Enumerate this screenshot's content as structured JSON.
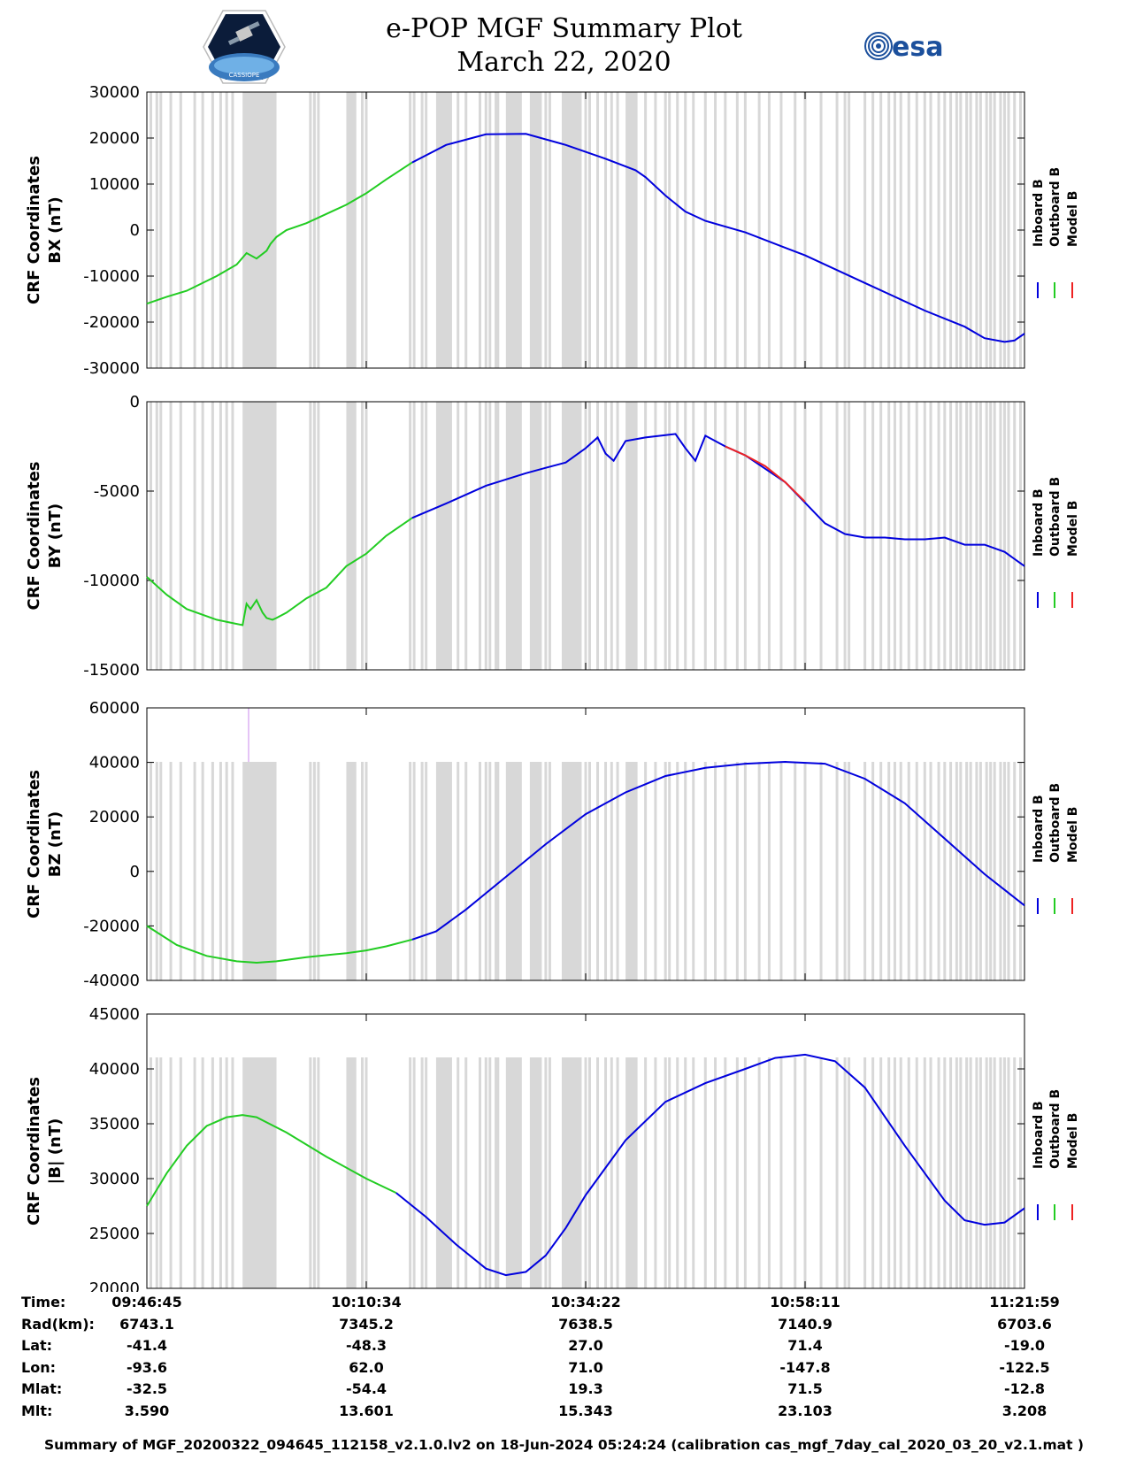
{
  "header": {
    "title_line1": "e-POP MGF Summary Plot",
    "title_line2": "March 22, 2020",
    "logo_left_text": "CASSIOPE",
    "logo_right_text": "esa"
  },
  "colors": {
    "inboard": "#0000dd",
    "outboard": "#22cc22",
    "model": "#ee2222",
    "gap_band": "#d8d8d8",
    "spike": "#cc88ee"
  },
  "legend": {
    "labels": [
      "Inboard B",
      "Outboard B",
      "Model B"
    ]
  },
  "chart_data": [
    {
      "type": "line",
      "ylabel_line1": "CRF Coordinates",
      "ylabel_line2": "BX (nT)",
      "ylim": [
        -30000,
        30000
      ],
      "yticks": [
        -30000,
        -20000,
        -10000,
        0,
        10000,
        20000,
        30000
      ],
      "ytick_labels": [
        "-30000",
        "-20000",
        "-10000",
        "0",
        "10000",
        "20000",
        "30000"
      ],
      "series": [
        {
          "name": "Outboard B",
          "x": [
            0,
            10,
            20,
            35,
            45,
            50,
            55,
            60,
            62,
            65,
            70,
            80,
            90,
            100,
            110,
            120,
            133
          ],
          "y": [
            -16000,
            -14500,
            -13200,
            -10000,
            -7500,
            -5000,
            -6200,
            -4500,
            -3000,
            -1500,
            0,
            1500,
            3500,
            5500,
            8000,
            11000,
            14700
          ]
        },
        {
          "name": "Inboard B",
          "x": [
            133,
            150,
            170,
            190,
            210,
            230,
            245,
            250,
            260,
            270,
            280,
            300,
            330,
            360,
            390,
            410,
            420,
            430,
            435,
            440
          ],
          "y": [
            14700,
            18500,
            20800,
            20900,
            18500,
            15500,
            13000,
            11500,
            7500,
            4000,
            2000,
            -500,
            -5500,
            -11500,
            -17500,
            -21000,
            -23500,
            -24300,
            -24000,
            -22500
          ]
        }
      ]
    },
    {
      "type": "line",
      "ylabel_line1": "CRF Coordinates",
      "ylabel_line2": "BY (nT)",
      "ylim": [
        -15000,
        0
      ],
      "yticks": [
        -15000,
        -10000,
        -5000,
        0
      ],
      "ytick_labels": [
        "-15000",
        "-10000",
        "-5000",
        "0"
      ],
      "series": [
        {
          "name": "Outboard B",
          "x": [
            0,
            10,
            20,
            35,
            48,
            50,
            52,
            55,
            58,
            60,
            63,
            65,
            70,
            80,
            90,
            100,
            110,
            120,
            133
          ],
          "y": [
            -9800,
            -10800,
            -11600,
            -12200,
            -12500,
            -11300,
            -11600,
            -11100,
            -11800,
            -12100,
            -12200,
            -12100,
            -11800,
            -11000,
            -10400,
            -9200,
            -8500,
            -7500,
            -6500
          ]
        },
        {
          "name": "Inboard B",
          "x": [
            133,
            150,
            170,
            190,
            200,
            210,
            220,
            226,
            230,
            234,
            240,
            250,
            265,
            270,
            275,
            280,
            290,
            300,
            320,
            340,
            350,
            360,
            370,
            380,
            390,
            400,
            410,
            420,
            430,
            440
          ],
          "y": [
            -6500,
            -5700,
            -4700,
            -4000,
            -3700,
            -3400,
            -2600,
            -2000,
            -2900,
            -3300,
            -2200,
            -2000,
            -1800,
            -2600,
            -3300,
            -1900,
            -2500,
            -3000,
            -4500,
            -6800,
            -7400,
            -7600,
            -7600,
            -7700,
            -7700,
            -7600,
            -8000,
            -8000,
            -8400,
            -9200
          ]
        },
        {
          "name": "Model B",
          "x": [
            290,
            300,
            310,
            320,
            330
          ],
          "y": [
            -2500,
            -3000,
            -3600,
            -4500,
            -5600
          ]
        }
      ]
    },
    {
      "type": "line",
      "ylabel_line1": "CRF Coordinates",
      "ylabel_line2": "BZ (nT)",
      "ylim": [
        -40000,
        60000
      ],
      "yticks": [
        -40000,
        -20000,
        0,
        20000,
        40000,
        60000
      ],
      "ytick_labels": [
        "-40000",
        "-20000",
        "0",
        "20000",
        "40000",
        "60000"
      ],
      "series": [
        {
          "name": "Outboard B",
          "x": [
            0,
            15,
            30,
            45,
            55,
            65,
            80,
            100,
            110,
            120,
            133
          ],
          "y": [
            -20000,
            -27000,
            -31000,
            -33000,
            -33500,
            -33000,
            -31500,
            -30000,
            -29000,
            -27500,
            -25000
          ]
        },
        {
          "name": "Inboard B",
          "x": [
            133,
            145,
            160,
            180,
            200,
            220,
            240,
            260,
            280,
            300,
            320,
            340,
            360,
            380,
            400,
            420,
            440
          ],
          "y": [
            -25000,
            -22000,
            -14000,
            -2000,
            10000,
            21000,
            29000,
            35000,
            38000,
            39500,
            40200,
            39500,
            34000,
            25000,
            12000,
            -1000,
            -12500
          ]
        }
      ]
    },
    {
      "type": "line",
      "ylabel_line1": "CRF Coordinates",
      "ylabel_line2": "|B| (nT)",
      "ylim": [
        20000,
        45000
      ],
      "yticks": [
        20000,
        25000,
        30000,
        35000,
        40000,
        45000
      ],
      "ytick_labels": [
        "20000",
        "25000",
        "30000",
        "35000",
        "40000",
        "45000"
      ],
      "series": [
        {
          "name": "Outboard B",
          "x": [
            0,
            10,
            20,
            30,
            40,
            48,
            55,
            70,
            90,
            110,
            125
          ],
          "y": [
            27500,
            30500,
            33000,
            34800,
            35600,
            35800,
            35600,
            34200,
            32000,
            30000,
            28700
          ]
        },
        {
          "name": "Inboard B",
          "x": [
            125,
            140,
            155,
            170,
            180,
            190,
            200,
            210,
            220,
            240,
            260,
            280,
            300,
            315,
            330,
            345,
            360,
            380,
            400,
            410,
            420,
            430,
            440
          ],
          "y": [
            28700,
            26500,
            24000,
            21800,
            21200,
            21500,
            23000,
            25500,
            28500,
            33500,
            37000,
            38700,
            40000,
            41000,
            41300,
            40700,
            38300,
            33000,
            28000,
            26200,
            25800,
            26000,
            27300
          ]
        }
      ]
    }
  ],
  "shading": {
    "bands": [
      [
        48,
        65
      ],
      [
        100,
        105
      ],
      [
        145,
        153
      ],
      [
        180,
        188
      ],
      [
        192,
        198
      ],
      [
        208,
        218
      ],
      [
        240,
        246
      ]
    ],
    "lines": [
      2,
      5,
      7,
      12,
      17,
      24,
      28,
      33,
      37,
      40,
      43,
      82,
      84,
      86,
      108,
      110,
      132,
      134,
      138,
      140,
      156,
      160,
      167,
      170,
      172,
      175,
      176,
      200,
      202,
      220,
      222,
      226,
      230,
      233,
      236,
      250,
      255,
      260,
      262,
      266,
      270,
      274,
      280,
      285,
      290,
      296,
      300,
      307,
      312,
      318,
      325,
      330,
      338,
      346,
      350,
      352,
      360,
      364,
      368,
      372,
      375,
      378,
      382,
      386,
      390,
      393,
      397,
      400,
      403,
      406,
      408,
      411,
      413,
      416,
      418,
      421,
      423,
      425,
      428,
      430,
      432,
      435,
      438
    ]
  },
  "spike": {
    "x": 51,
    "y_top": 60000,
    "panel": 2
  },
  "info": {
    "labels": [
      "Time:",
      "Rad(km):",
      "Lat:",
      "Lon:",
      "Mlat:",
      "Mlt:"
    ],
    "columns": [
      [
        "09:46:45",
        "6743.1",
        "-41.4",
        "-93.6",
        "-32.5",
        "3.590"
      ],
      [
        "10:10:34",
        "7345.2",
        "-48.3",
        "62.0",
        "-54.4",
        "13.601"
      ],
      [
        "10:34:22",
        "7638.5",
        "27.0",
        "71.0",
        "19.3",
        "15.343"
      ],
      [
        "10:58:11",
        "7140.9",
        "71.4",
        "-147.8",
        "71.5",
        "23.103"
      ],
      [
        "11:21:59",
        "6703.6",
        "-19.0",
        "-122.5",
        "-12.8",
        "3.208"
      ]
    ]
  },
  "footer": "Summary of MGF_20200322_094645_112158_v2.1.0.lv2 on 18-Jun-2024 05:24:24 (calibration cas_mgf_7day_cal_2020_03_20_v2.1.mat )"
}
